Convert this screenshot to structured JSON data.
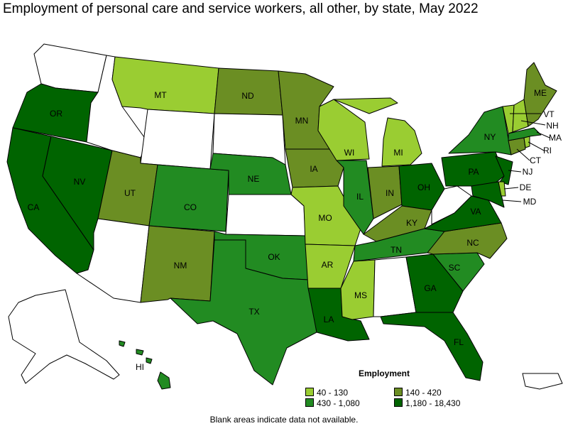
{
  "title": "Employment of personal care and service workers, all other, by state, May 2022",
  "legend": {
    "title": "Employment",
    "items": [
      {
        "label": "40 - 130",
        "color": "#9acd32"
      },
      {
        "label": "140 - 420",
        "color": "#6b8e23"
      },
      {
        "label": "430 - 1,080",
        "color": "#228b22"
      },
      {
        "label": "1,180 - 18,430",
        "color": "#006400"
      }
    ]
  },
  "footnote": "Blank areas indicate data not available.",
  "states": {
    "WA": {
      "label": "",
      "color": "#ffffff"
    },
    "OR": {
      "label": "OR",
      "color": "#006400"
    },
    "CA": {
      "label": "CA",
      "color": "#006400"
    },
    "NV": {
      "label": "NV",
      "color": "#006400"
    },
    "ID": {
      "label": "",
      "color": "#ffffff"
    },
    "MT": {
      "label": "MT",
      "color": "#9acd32"
    },
    "WY": {
      "label": "",
      "color": "#ffffff"
    },
    "UT": {
      "label": "UT",
      "color": "#6b8e23"
    },
    "AZ": {
      "label": "",
      "color": "#ffffff"
    },
    "CO": {
      "label": "CO",
      "color": "#228b22"
    },
    "NM": {
      "label": "NM",
      "color": "#6b8e23"
    },
    "ND": {
      "label": "ND",
      "color": "#6b8e23"
    },
    "SD": {
      "label": "",
      "color": "#ffffff"
    },
    "NE": {
      "label": "NE",
      "color": "#228b22"
    },
    "KS": {
      "label": "",
      "color": "#ffffff"
    },
    "OK": {
      "label": "OK",
      "color": "#228b22"
    },
    "TX": {
      "label": "TX",
      "color": "#228b22"
    },
    "MN": {
      "label": "MN",
      "color": "#6b8e23"
    },
    "IA": {
      "label": "IA",
      "color": "#6b8e23"
    },
    "MO": {
      "label": "MO",
      "color": "#9acd32"
    },
    "AR": {
      "label": "AR",
      "color": "#9acd32"
    },
    "LA": {
      "label": "LA",
      "color": "#006400"
    },
    "WI": {
      "label": "WI",
      "color": "#9acd32"
    },
    "IL": {
      "label": "IL",
      "color": "#228b22"
    },
    "MI": {
      "label": "MI",
      "color": "#9acd32"
    },
    "IN": {
      "label": "IN",
      "color": "#6b8e23"
    },
    "OH": {
      "label": "OH",
      "color": "#006400"
    },
    "KY": {
      "label": "KY",
      "color": "#6b8e23"
    },
    "TN": {
      "label": "TN",
      "color": "#228b22"
    },
    "MS": {
      "label": "MS",
      "color": "#9acd32"
    },
    "AL": {
      "label": "",
      "color": "#ffffff"
    },
    "GA": {
      "label": "GA",
      "color": "#006400"
    },
    "FL": {
      "label": "FL",
      "color": "#006400"
    },
    "SC": {
      "label": "SC",
      "color": "#228b22"
    },
    "NC": {
      "label": "NC",
      "color": "#6b8e23"
    },
    "VA": {
      "label": "VA",
      "color": "#006400"
    },
    "WV": {
      "label": "",
      "color": "#ffffff"
    },
    "PA": {
      "label": "PA",
      "color": "#006400"
    },
    "NY": {
      "label": "NY",
      "color": "#228b22"
    },
    "NJ": {
      "label": "NJ",
      "color": "#006400"
    },
    "DE": {
      "label": "DE",
      "color": "#9acd32"
    },
    "MD": {
      "label": "MD",
      "color": "#006400"
    },
    "CT": {
      "label": "CT",
      "color": "#6b8e23"
    },
    "RI": {
      "label": "RI",
      "color": "#9acd32"
    },
    "MA": {
      "label": "MA",
      "color": "#228b22"
    },
    "VT": {
      "label": "VT",
      "color": "#9acd32"
    },
    "NH": {
      "label": "NH",
      "color": "#9acd32"
    },
    "ME": {
      "label": "ME",
      "color": "#6b8e23"
    },
    "AK": {
      "label": "",
      "color": "#ffffff"
    },
    "HI": {
      "label": "HI",
      "color": "#228b22"
    },
    "PR": {
      "label": "",
      "color": "#ffffff"
    }
  }
}
